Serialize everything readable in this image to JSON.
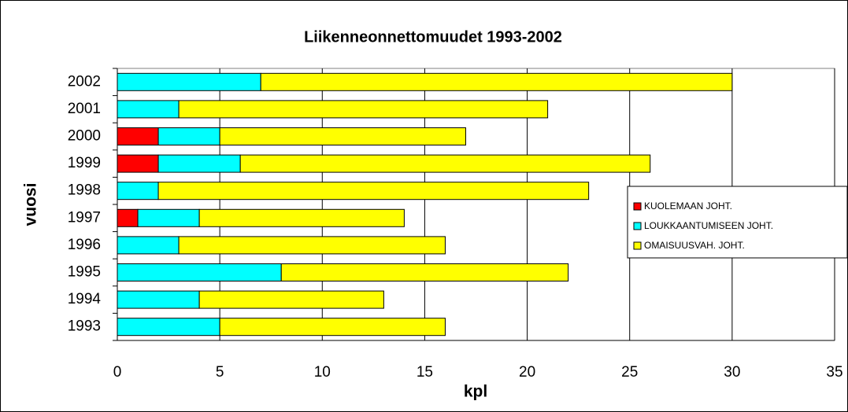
{
  "chart_data": {
    "type": "stacked-barh",
    "title": "Liikenneonnettomuudet 1993-2002",
    "x_label": "kpl",
    "y_label": "vuosi",
    "categories": [
      "1993",
      "1994",
      "1995",
      "1996",
      "1997",
      "1998",
      "1999",
      "2000",
      "2001",
      "2002"
    ],
    "series": [
      {
        "name": "KUOLEMAAN JOHT.",
        "color": "#ff0000",
        "values": [
          0,
          0,
          0,
          0,
          1,
          0,
          2,
          2,
          0,
          0
        ]
      },
      {
        "name": "LOUKKAANTUMISEEN JOHT.",
        "color": "#00ffff",
        "values": [
          5,
          4,
          8,
          3,
          3,
          2,
          4,
          3,
          3,
          7
        ]
      },
      {
        "name": "OMAISUUSVAH. JOHT.",
        "color": "#ffff00",
        "values": [
          11,
          9,
          14,
          13,
          10,
          21,
          20,
          12,
          18,
          23
        ]
      }
    ],
    "xlim": [
      0,
      35
    ],
    "xticks": [
      0,
      5,
      10,
      15,
      20,
      25,
      30,
      35
    ],
    "grid": true,
    "legend": "right"
  }
}
